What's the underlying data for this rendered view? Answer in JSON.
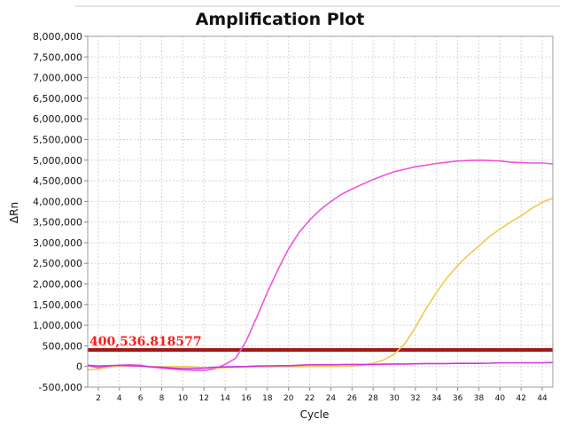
{
  "chart_data": {
    "type": "line",
    "title": "Amplification Plot",
    "xlabel": "Cycle",
    "ylabel": "ΔRn",
    "xlim": [
      1,
      45
    ],
    "ylim": [
      -500000,
      8000000
    ],
    "grid": true,
    "x_ticks": [
      2,
      4,
      6,
      8,
      10,
      12,
      14,
      16,
      18,
      20,
      22,
      24,
      26,
      28,
      30,
      32,
      34,
      36,
      38,
      40,
      42,
      44
    ],
    "y_ticks": [
      -500000,
      0,
      500000,
      1000000,
      1500000,
      2000000,
      2500000,
      3000000,
      3500000,
      4000000,
      4500000,
      5000000,
      5500000,
      6000000,
      6500000,
      7000000,
      7500000,
      8000000
    ],
    "y_tick_labels": [
      "-500,000",
      "0",
      "500,000",
      "1,000,000",
      "1,500,000",
      "2,000,000",
      "2,500,000",
      "3,000,000",
      "3,500,000",
      "4,000,000",
      "4,500,000",
      "5,000,000",
      "5,500,000",
      "6,000,000",
      "6,500,000",
      "7,000,000",
      "7,500,000",
      "8,000,000"
    ],
    "threshold": {
      "value": 400536.818577,
      "label": "400,536.818577",
      "color": "#a01818",
      "label_color": "#ff1a1a"
    },
    "series": [
      {
        "color": "#ee55dd",
        "points": [
          [
            1,
            20000
          ],
          [
            2,
            -30000
          ],
          [
            3,
            10000
          ],
          [
            4,
            30000
          ],
          [
            5,
            40000
          ],
          [
            6,
            30000
          ],
          [
            7,
            -10000
          ],
          [
            8,
            -40000
          ],
          [
            9,
            -60000
          ],
          [
            10,
            -80000
          ],
          [
            11,
            -90000
          ],
          [
            12,
            -95000
          ],
          [
            13,
            -60000
          ],
          [
            14,
            50000
          ],
          [
            15,
            200000
          ],
          [
            16,
            620000
          ],
          [
            17,
            1200000
          ],
          [
            18,
            1800000
          ],
          [
            19,
            2350000
          ],
          [
            20,
            2850000
          ],
          [
            21,
            3250000
          ],
          [
            22,
            3550000
          ],
          [
            23,
            3800000
          ],
          [
            24,
            4000000
          ],
          [
            25,
            4170000
          ],
          [
            26,
            4300000
          ],
          [
            27,
            4420000
          ],
          [
            28,
            4530000
          ],
          [
            29,
            4630000
          ],
          [
            30,
            4720000
          ],
          [
            31,
            4780000
          ],
          [
            32,
            4840000
          ],
          [
            33,
            4880000
          ],
          [
            34,
            4920000
          ],
          [
            35,
            4950000
          ],
          [
            36,
            4980000
          ],
          [
            37,
            4990000
          ],
          [
            38,
            5000000
          ],
          [
            39,
            4990000
          ],
          [
            40,
            4980000
          ],
          [
            41,
            4950000
          ],
          [
            42,
            4940000
          ],
          [
            43,
            4930000
          ],
          [
            44,
            4930000
          ],
          [
            45,
            4910000
          ]
        ]
      },
      {
        "color": "#f0c850",
        "points": [
          [
            1,
            -80000
          ],
          [
            2,
            -60000
          ],
          [
            3,
            -20000
          ],
          [
            4,
            10000
          ],
          [
            5,
            20000
          ],
          [
            6,
            10000
          ],
          [
            7,
            0
          ],
          [
            8,
            -10000
          ],
          [
            9,
            -5000
          ],
          [
            10,
            0
          ],
          [
            11,
            -10000
          ],
          [
            12,
            -30000
          ],
          [
            13,
            -40000
          ],
          [
            14,
            -30000
          ],
          [
            15,
            -20000
          ],
          [
            16,
            -15000
          ],
          [
            17,
            -10000
          ],
          [
            18,
            -10000
          ],
          [
            19,
            -5000
          ],
          [
            20,
            -5000
          ],
          [
            21,
            -5000
          ],
          [
            22,
            0
          ],
          [
            23,
            0
          ],
          [
            24,
            0
          ],
          [
            25,
            5000
          ],
          [
            26,
            10000
          ],
          [
            27,
            30000
          ],
          [
            28,
            80000
          ],
          [
            29,
            160000
          ],
          [
            30,
            300000
          ],
          [
            31,
            550000
          ],
          [
            32,
            950000
          ],
          [
            33,
            1400000
          ],
          [
            34,
            1800000
          ],
          [
            35,
            2150000
          ],
          [
            36,
            2450000
          ],
          [
            37,
            2700000
          ],
          [
            38,
            2920000
          ],
          [
            39,
            3150000
          ],
          [
            40,
            3330000
          ],
          [
            41,
            3500000
          ],
          [
            42,
            3650000
          ],
          [
            43,
            3830000
          ],
          [
            44,
            3980000
          ],
          [
            45,
            4080000
          ]
        ]
      },
      {
        "color": "#cc33dd",
        "points": [
          [
            1,
            30000
          ],
          [
            2,
            10000
          ],
          [
            3,
            20000
          ],
          [
            4,
            30000
          ],
          [
            5,
            20000
          ],
          [
            6,
            10000
          ],
          [
            7,
            -10000
          ],
          [
            8,
            -20000
          ],
          [
            9,
            -40000
          ],
          [
            10,
            -50000
          ],
          [
            11,
            -50000
          ],
          [
            12,
            -40000
          ],
          [
            13,
            -20000
          ],
          [
            14,
            -10000
          ],
          [
            15,
            -5000
          ],
          [
            16,
            0
          ],
          [
            17,
            10000
          ],
          [
            18,
            15000
          ],
          [
            19,
            20000
          ],
          [
            20,
            20000
          ],
          [
            21,
            30000
          ],
          [
            22,
            40000
          ],
          [
            23,
            40000
          ],
          [
            24,
            40000
          ],
          [
            25,
            45000
          ],
          [
            26,
            50000
          ],
          [
            27,
            50000
          ],
          [
            28,
            50000
          ],
          [
            29,
            55000
          ],
          [
            30,
            60000
          ],
          [
            31,
            60000
          ],
          [
            32,
            65000
          ],
          [
            33,
            70000
          ],
          [
            34,
            70000
          ],
          [
            35,
            70000
          ],
          [
            36,
            75000
          ],
          [
            37,
            75000
          ],
          [
            38,
            75000
          ],
          [
            39,
            80000
          ],
          [
            40,
            90000
          ],
          [
            41,
            90000
          ],
          [
            42,
            90000
          ],
          [
            43,
            90000
          ],
          [
            44,
            90000
          ],
          [
            45,
            95000
          ]
        ]
      }
    ]
  }
}
